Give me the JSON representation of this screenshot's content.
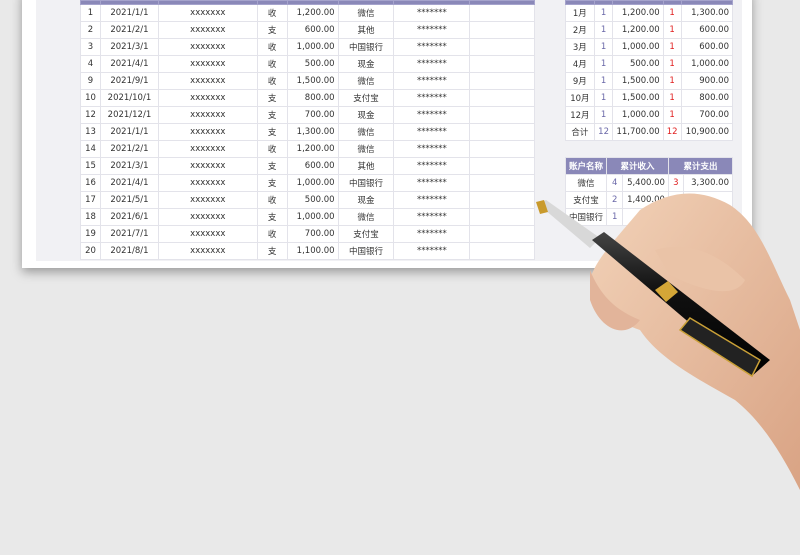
{
  "ledger": {
    "rows": [
      [
        "1",
        "2021/1/1",
        "xxxxxxx",
        "收",
        "1,200.00",
        "微信",
        "*******"
      ],
      [
        "2",
        "2021/2/1",
        "xxxxxxx",
        "支",
        "600.00",
        "其他",
        "*******"
      ],
      [
        "3",
        "2021/3/1",
        "xxxxxxx",
        "收",
        "1,000.00",
        "中国银行",
        "*******"
      ],
      [
        "4",
        "2021/4/1",
        "xxxxxxx",
        "收",
        "500.00",
        "现金",
        "*******"
      ],
      [
        "9",
        "2021/9/1",
        "xxxxxxx",
        "收",
        "1,500.00",
        "微信",
        "*******"
      ],
      [
        "10",
        "2021/10/1",
        "xxxxxxx",
        "支",
        "800.00",
        "支付宝",
        "*******"
      ],
      [
        "12",
        "2021/12/1",
        "xxxxxxx",
        "支",
        "700.00",
        "现金",
        "*******"
      ],
      [
        "13",
        "2021/1/1",
        "xxxxxxx",
        "支",
        "1,300.00",
        "微信",
        "*******"
      ],
      [
        "14",
        "2021/2/1",
        "xxxxxxx",
        "收",
        "1,200.00",
        "微信",
        "*******"
      ],
      [
        "15",
        "2021/3/1",
        "xxxxxxx",
        "支",
        "600.00",
        "其他",
        "*******"
      ],
      [
        "16",
        "2021/4/1",
        "xxxxxxx",
        "支",
        "1,000.00",
        "中国银行",
        "*******"
      ],
      [
        "17",
        "2021/5/1",
        "xxxxxxx",
        "收",
        "500.00",
        "现金",
        "*******"
      ],
      [
        "18",
        "2021/6/1",
        "xxxxxxx",
        "支",
        "1,000.00",
        "微信",
        "*******"
      ],
      [
        "19",
        "2021/7/1",
        "xxxxxxx",
        "收",
        "700.00",
        "支付宝",
        "*******"
      ],
      [
        "20",
        "2021/8/1",
        "xxxxxxx",
        "支",
        "1,100.00",
        "中国银行",
        "*******"
      ]
    ]
  },
  "monthly": {
    "rows": [
      [
        "1月",
        "1",
        "1,200.00",
        "1",
        "1,300.00"
      ],
      [
        "2月",
        "1",
        "1,200.00",
        "1",
        "600.00"
      ],
      [
        "3月",
        "1",
        "1,000.00",
        "1",
        "600.00"
      ],
      [
        "4月",
        "1",
        "500.00",
        "1",
        "1,000.00"
      ],
      [
        "9月",
        "1",
        "1,500.00",
        "1",
        "900.00"
      ],
      [
        "10月",
        "1",
        "1,500.00",
        "1",
        "800.00"
      ],
      [
        "12月",
        "1",
        "1,000.00",
        "1",
        "700.00"
      ],
      [
        "合计",
        "12",
        "11,700.00",
        "12",
        "10,900.00"
      ]
    ]
  },
  "accounts": {
    "headers": [
      "账户名称",
      "累计收入",
      "累计支出"
    ],
    "rows": [
      [
        "微信",
        "4",
        "5,400.00",
        "3",
        "3,300.00"
      ],
      [
        "支付宝",
        "2",
        "1,400.00",
        "",
        ""
      ],
      [
        "中国银行",
        "1",
        "",
        "",
        ""
      ]
    ]
  },
  "colors": {
    "header": "#8a88b8",
    "count_in": "#6a68a8",
    "count_out": "#e02020"
  }
}
